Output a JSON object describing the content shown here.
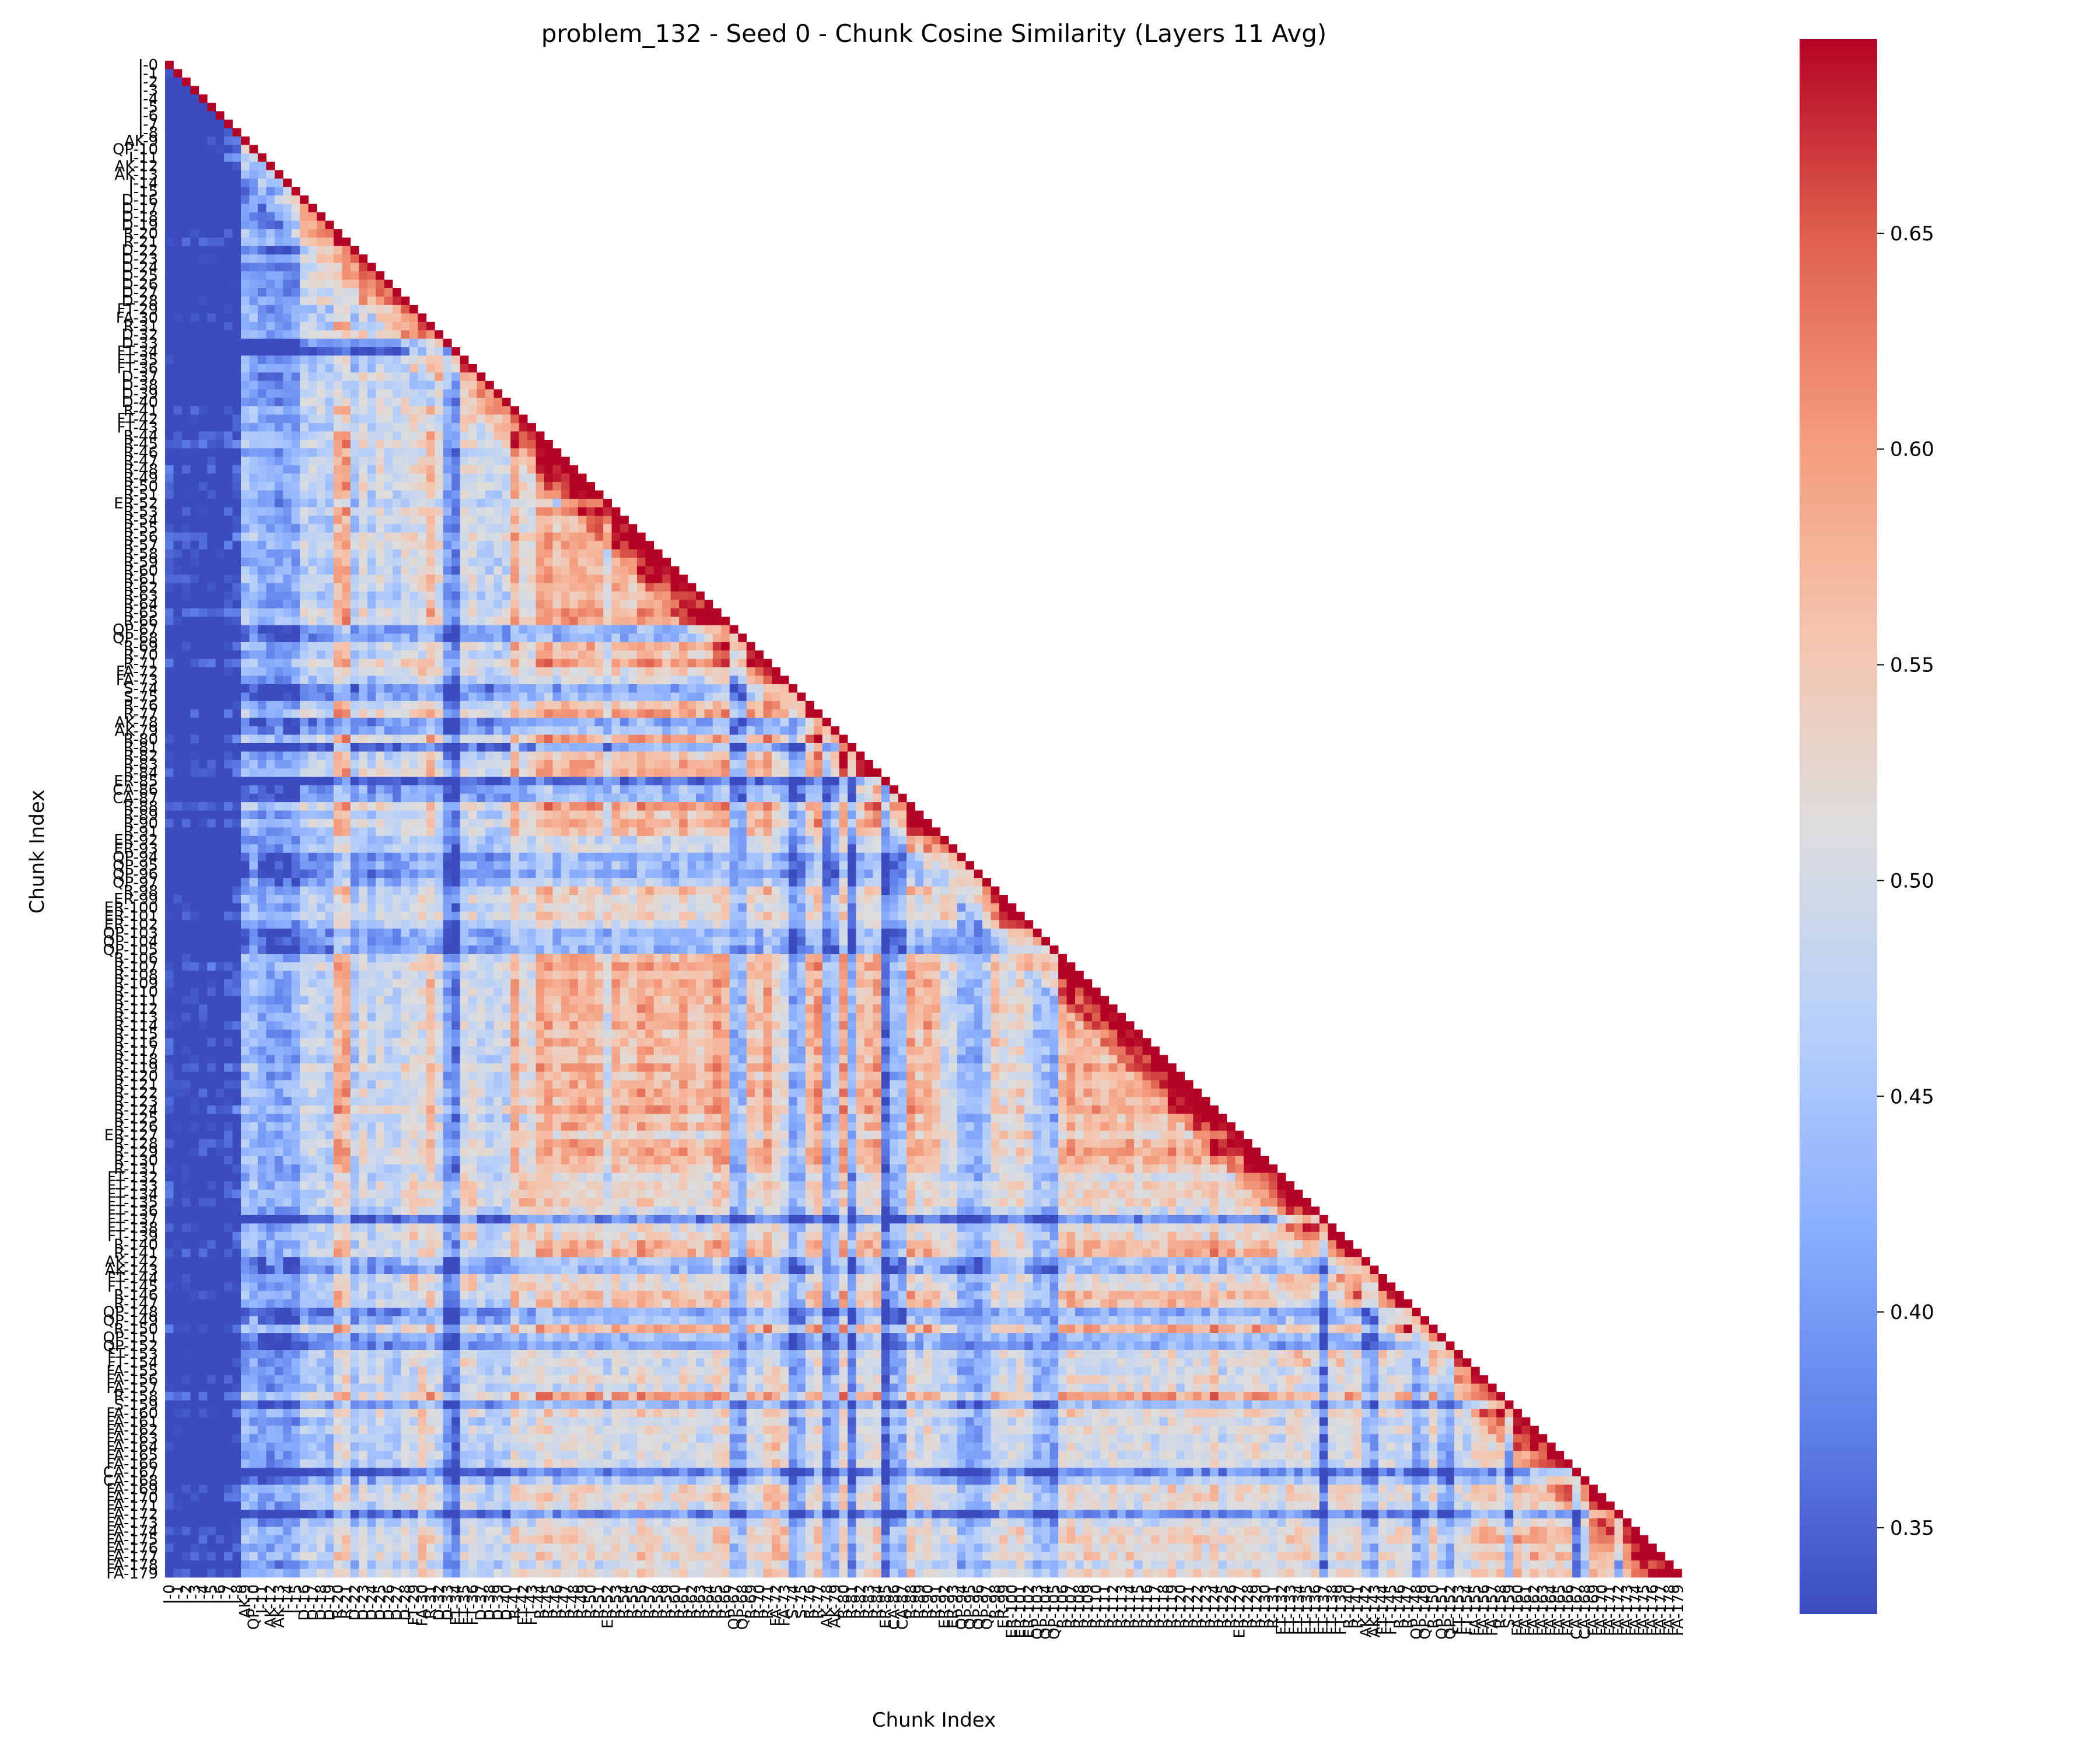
{
  "chart_data": {
    "type": "heatmap",
    "title": "problem_132 - Seed 0 - Chunk Cosine Similarity (Layers 11 Avg)",
    "xlabel": "Chunk Index",
    "ylabel": "Chunk Index",
    "n": 180,
    "mask": "upper triangle above diagonal",
    "colormap": "coolwarm",
    "vmin": 0.33,
    "vmax": 0.695,
    "colorbar_ticks": [
      0.35,
      0.4,
      0.45,
      0.5,
      0.55,
      0.6,
      0.65
    ],
    "colorbar_tick_labels": [
      "0.35",
      "0.40",
      "0.45",
      "0.50",
      "0.55",
      "0.60",
      "0.65"
    ],
    "labels": [
      "I-0",
      "I-1",
      "I-2",
      "I-3",
      "I-4",
      "I-5",
      "I-6",
      "I-7",
      "I-8",
      "AK-9",
      "QP-10",
      "I-11",
      "AK-12",
      "AK-13",
      "I-14",
      "I-15",
      "D-16",
      "D-17",
      "D-18",
      "D-19",
      "R-20",
      "R-21",
      "D-22",
      "D-23",
      "D-24",
      "D-25",
      "D-26",
      "D-27",
      "D-28",
      "FT-29",
      "FA-30",
      "R-31",
      "D-32",
      "D-33",
      "FT-34",
      "FT-35",
      "FT-36",
      "D-37",
      "D-38",
      "D-39",
      "D-40",
      "R-41",
      "FT-42",
      "FT-43",
      "R-44",
      "R-45",
      "R-46",
      "R-47",
      "R-48",
      "R-49",
      "R-50",
      "R-51",
      "ER-52",
      "R-53",
      "R-54",
      "R-55",
      "R-56",
      "R-57",
      "R-58",
      "R-59",
      "R-60",
      "R-61",
      "R-62",
      "R-63",
      "R-64",
      "R-65",
      "R-66",
      "QP-67",
      "QP-68",
      "R-69",
      "R-70",
      "R-71",
      "FA-72",
      "FA-73",
      "S-74",
      "S-75",
      "R-76",
      "R-77",
      "AK-78",
      "AK-79",
      "R-80",
      "R-81",
      "R-82",
      "R-83",
      "R-84",
      "ER-85",
      "CA-86",
      "CA-87",
      "R-88",
      "R-89",
      "R-90",
      "R-91",
      "ER-92",
      "ER-93",
      "QP-94",
      "QP-95",
      "QP-96",
      "QP-97",
      "R-98",
      "ER-99",
      "ER-100",
      "ER-101",
      "ER-102",
      "QP-103",
      "QP-104",
      "QP-105",
      "R-106",
      "R-107",
      "R-108",
      "R-109",
      "R-110",
      "R-111",
      "R-112",
      "R-113",
      "R-114",
      "R-115",
      "R-116",
      "R-117",
      "R-118",
      "R-119",
      "R-120",
      "R-121",
      "R-122",
      "R-123",
      "R-124",
      "R-125",
      "R-126",
      "ER-127",
      "R-128",
      "R-129",
      "R-130",
      "R-131",
      "FT-132",
      "FT-133",
      "FT-134",
      "FT-135",
      "FT-136",
      "FT-137",
      "FT-138",
      "FT-139",
      "R-140",
      "R-141",
      "AK-142",
      "AK-143",
      "FT-144",
      "FT-145",
      "R-146",
      "R-147",
      "QP-148",
      "QP-149",
      "R-150",
      "QP-151",
      "QP-152",
      "FT-153",
      "FT-154",
      "FA-155",
      "FA-156",
      "FA-157",
      "R-158",
      "S-159",
      "FA-160",
      "FA-161",
      "FA-162",
      "FA-163",
      "FA-164",
      "FA-165",
      "FA-166",
      "CA-167",
      "CA-168",
      "FA-169",
      "FA-170",
      "FA-171",
      "FA-172",
      "FA-173",
      "FA-174",
      "FA-175",
      "FA-176",
      "FA-177",
      "FA-178",
      "FA-179"
    ]
  }
}
